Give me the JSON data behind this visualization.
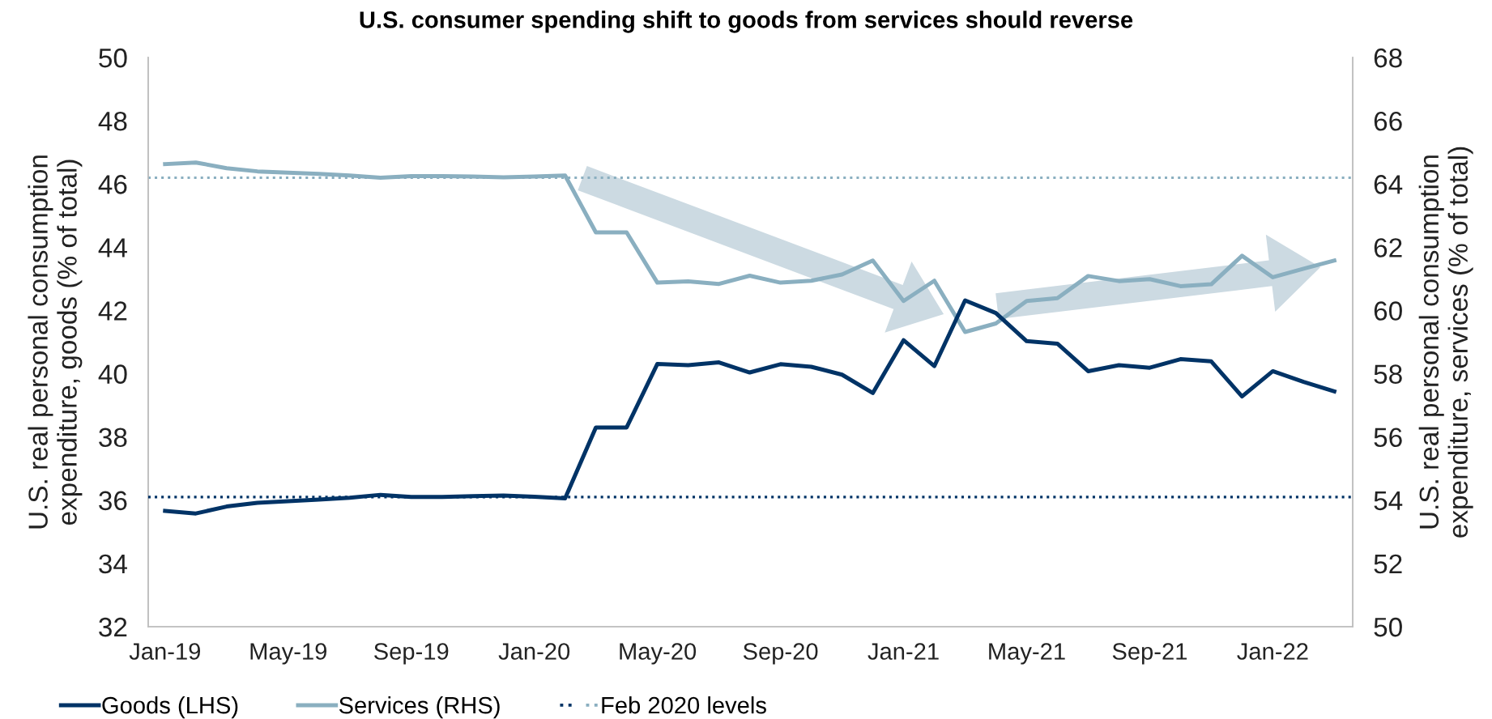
{
  "chart_data": {
    "type": "line",
    "title": "U.S. consumer spending shift to goods from services should reverse",
    "ylabel": "U.S. real personal consumption\nexpenditure, goods (% of total)",
    "y2label": "U.S. real personal consumption\nexpenditure, services (% of total)",
    "categories": [
      "Jan-19",
      null,
      null,
      null,
      "May-19",
      null,
      null,
      null,
      "Sep-19",
      null,
      null,
      null,
      "Jan-20",
      null,
      null,
      null,
      "May-20",
      null,
      null,
      null,
      "Sep-20",
      null,
      null,
      null,
      "Jan-21",
      null,
      null,
      null,
      "May-21",
      null,
      null,
      null,
      "Sep-21",
      null,
      null,
      null,
      "Jan-22",
      null,
      null
    ],
    "series": [
      {
        "name": "Goods (LHS)",
        "color": "#003366",
        "values": [
          35.66,
          35.58,
          35.8,
          35.92,
          35.97,
          36.02,
          36.08,
          36.17,
          36.1,
          36.1,
          36.13,
          36.15,
          36.11,
          36.06,
          38.3,
          38.3,
          40.31,
          40.27,
          40.36,
          40.04,
          40.3,
          40.22,
          39.97,
          39.39,
          41.06,
          40.24,
          42.32,
          41.92,
          41.03,
          40.95,
          40.08,
          40.27,
          40.19,
          40.46,
          40.39,
          39.28,
          40.08,
          39.74,
          39.44
        ]
      },
      {
        "name": "Services (RHS)",
        "color": "#8aafc0",
        "axis": "y2",
        "values": [
          64.63,
          64.68,
          64.5,
          64.4,
          64.36,
          64.32,
          64.27,
          64.2,
          64.25,
          64.25,
          64.24,
          64.21,
          64.24,
          64.27,
          62.47,
          62.47,
          60.88,
          60.92,
          60.84,
          61.1,
          60.88,
          60.94,
          61.14,
          61.58,
          60.3,
          60.94,
          59.32,
          59.59,
          60.3,
          60.39,
          61.09,
          60.93,
          60.99,
          60.77,
          60.83,
          61.73,
          61.05,
          61.32,
          61.58
        ]
      }
    ],
    "ylim": [
      32,
      50
    ],
    "yticks": [
      32,
      34,
      36,
      38,
      40,
      42,
      44,
      46,
      48,
      50
    ],
    "y2lim": [
      50,
      68
    ],
    "y2ticks": [
      50,
      52,
      54,
      56,
      58,
      60,
      62,
      64,
      66,
      68
    ],
    "ref_lines": [
      {
        "axis": "y2",
        "value": 64.2,
        "label": "Feb 2020 levels",
        "color": "#8aafc0",
        "line_style": "dotted"
      },
      {
        "axis": "y",
        "value": 36.1,
        "color": "#003366",
        "line_style": "dotted"
      }
    ],
    "legend": "bottom",
    "grid": false,
    "marker": "none",
    "line_style": "solid"
  }
}
